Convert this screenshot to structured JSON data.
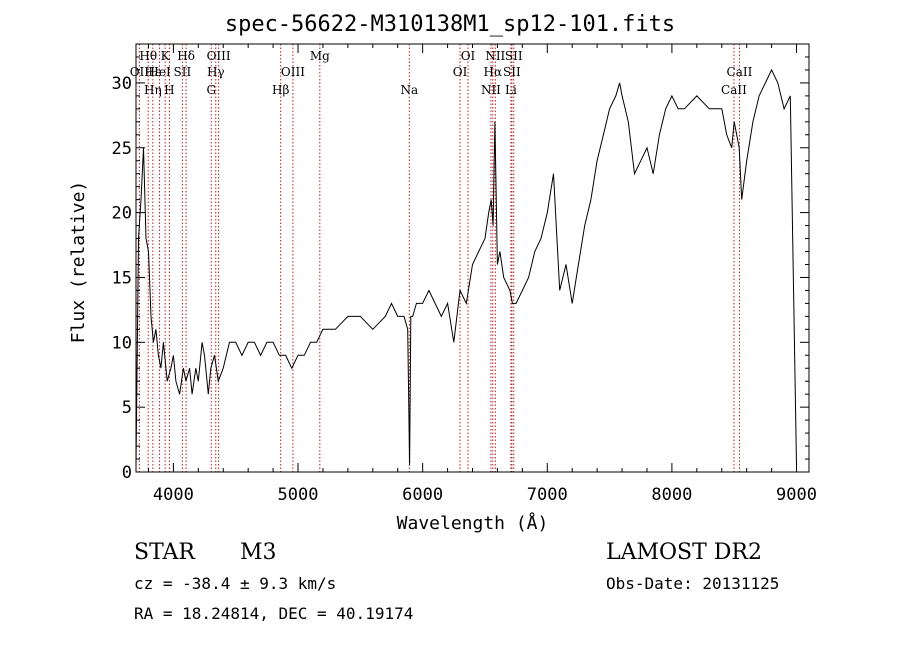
{
  "chart_data": {
    "type": "line",
    "title": "spec-56622-M310138M1_sp12-101.fits",
    "xlabel": "Wavelength (Å)",
    "ylabel": "Flux (relative)",
    "xlim": [
      3700,
      9100
    ],
    "ylim": [
      0,
      33
    ],
    "xticks": [
      4000,
      5000,
      6000,
      7000,
      8000,
      9000
    ],
    "yticks": [
      0,
      5,
      10,
      15,
      20,
      25,
      30
    ],
    "line_color": "#000000",
    "marker_color": "#b22222",
    "grid": false,
    "series": [
      {
        "x": [
          3700,
          3720,
          3740,
          3760,
          3780,
          3800,
          3820,
          3840,
          3860,
          3880,
          3900,
          3920,
          3950,
          3980,
          4000,
          4020,
          4050,
          4080,
          4100,
          4130,
          4150,
          4180,
          4200,
          4230,
          4250,
          4280,
          4300,
          4330,
          4360,
          4400,
          4450,
          4500,
          4550,
          4600,
          4650,
          4700,
          4750,
          4800,
          4850,
          4900,
          4950,
          5000,
          5050,
          5100,
          5150,
          5200,
          5250,
          5300,
          5400,
          5500,
          5600,
          5700,
          5750,
          5800,
          5850,
          5880,
          5895,
          5905,
          5920,
          5950,
          6000,
          6050,
          6100,
          6150,
          6200,
          6250,
          6300,
          6350,
          6400,
          6450,
          6500,
          6530,
          6550,
          6565,
          6580,
          6600,
          6620,
          6650,
          6700,
          6720,
          6750,
          6800,
          6850,
          6900,
          6950,
          7000,
          7050,
          7100,
          7150,
          7200,
          7250,
          7300,
          7350,
          7400,
          7450,
          7500,
          7550,
          7580,
          7600,
          7650,
          7700,
          7750,
          7800,
          7850,
          7900,
          7950,
          8000,
          8050,
          8100,
          8200,
          8300,
          8400,
          8420,
          8440,
          8480,
          8500,
          8540,
          8560,
          8600,
          8650,
          8700,
          8750,
          8800,
          8850,
          8900,
          8950,
          9000
        ],
        "y": [
          0.5,
          18,
          21,
          25,
          18,
          17,
          12,
          10,
          11,
          9,
          8,
          10,
          7,
          8,
          9,
          7,
          6,
          8,
          7,
          8,
          6,
          8,
          7,
          10,
          9,
          6,
          8,
          9,
          7,
          8,
          10,
          10,
          9,
          10,
          10,
          9,
          10,
          10,
          9,
          9,
          8,
          9,
          9,
          10,
          10,
          11,
          11,
          11,
          12,
          12,
          11,
          12,
          13,
          12,
          12,
          11,
          0.5,
          12,
          12,
          13,
          13,
          14,
          13,
          12,
          13,
          10,
          14,
          13,
          16,
          17,
          18,
          20,
          21,
          19,
          27,
          16,
          17,
          15,
          14,
          13,
          13,
          14,
          15,
          17,
          18,
          20,
          23,
          14,
          16,
          13,
          16,
          19,
          21,
          24,
          26,
          28,
          29,
          30,
          29,
          27,
          23,
          24,
          25,
          23,
          26,
          28,
          29,
          28,
          28,
          29,
          28,
          28,
          27,
          26,
          25,
          27,
          25,
          21,
          24,
          27,
          29,
          30,
          31,
          30,
          28,
          29,
          0.5
        ]
      }
    ],
    "line_labels": [
      {
        "text": "Hθ",
        "x": 3798,
        "row": 0
      },
      {
        "text": "K",
        "x": 3934,
        "row": 0
      },
      {
        "text": "Hδ",
        "x": 4102,
        "row": 0
      },
      {
        "text": "OII",
        "x": 3727,
        "row": 1
      },
      {
        "text": "Hε",
        "x": 3835,
        "row": 1
      },
      {
        "text": "HeI",
        "x": 3889,
        "row": 1
      },
      {
        "text": "SII",
        "x": 4072,
        "row": 1
      },
      {
        "text": "Hη",
        "x": 3835,
        "row": 2
      },
      {
        "text": "H",
        "x": 3968,
        "row": 2
      },
      {
        "text": "OIII",
        "x": 4363,
        "row": 0
      },
      {
        "text": "Hγ",
        "x": 4340,
        "row": 1
      },
      {
        "text": "G",
        "x": 4304,
        "row": 2
      },
      {
        "text": "Mg",
        "x": 5175,
        "row": 0
      },
      {
        "text": "OIII",
        "x": 4959,
        "row": 1
      },
      {
        "text": "Hβ",
        "x": 4861,
        "row": 2
      },
      {
        "text": "Na",
        "x": 5893,
        "row": 2
      },
      {
        "text": "OI",
        "x": 6364,
        "row": 0
      },
      {
        "text": "OI",
        "x": 6300,
        "row": 1
      },
      {
        "text": "NII",
        "x": 6583,
        "row": 0
      },
      {
        "text": "SII",
        "x": 6731,
        "row": 0
      },
      {
        "text": "Hα",
        "x": 6563,
        "row": 1
      },
      {
        "text": "SII",
        "x": 6716,
        "row": 1
      },
      {
        "text": "NII",
        "x": 6548,
        "row": 2
      },
      {
        "text": "Li",
        "x": 6708,
        "row": 2
      },
      {
        "text": "CaII",
        "x": 8542,
        "row": 1
      },
      {
        "text": "CaII",
        "x": 8498,
        "row": 2
      }
    ],
    "marker_lines": [
      3727,
      3798,
      3835,
      3889,
      3934,
      3968,
      4072,
      4102,
      4304,
      4340,
      4363,
      4861,
      4959,
      5175,
      5893,
      6300,
      6364,
      6548,
      6563,
      6583,
      6708,
      6716,
      6731,
      8498,
      8542
    ]
  },
  "info": {
    "object_type": "STAR",
    "subclass": "M3",
    "survey": "LAMOST DR2",
    "velocity": "cz = -38.4 ± 9.3 km/s",
    "obs_date": "Obs-Date: 20131125",
    "coords": "RA =  18.24814, DEC =  40.19174"
  }
}
